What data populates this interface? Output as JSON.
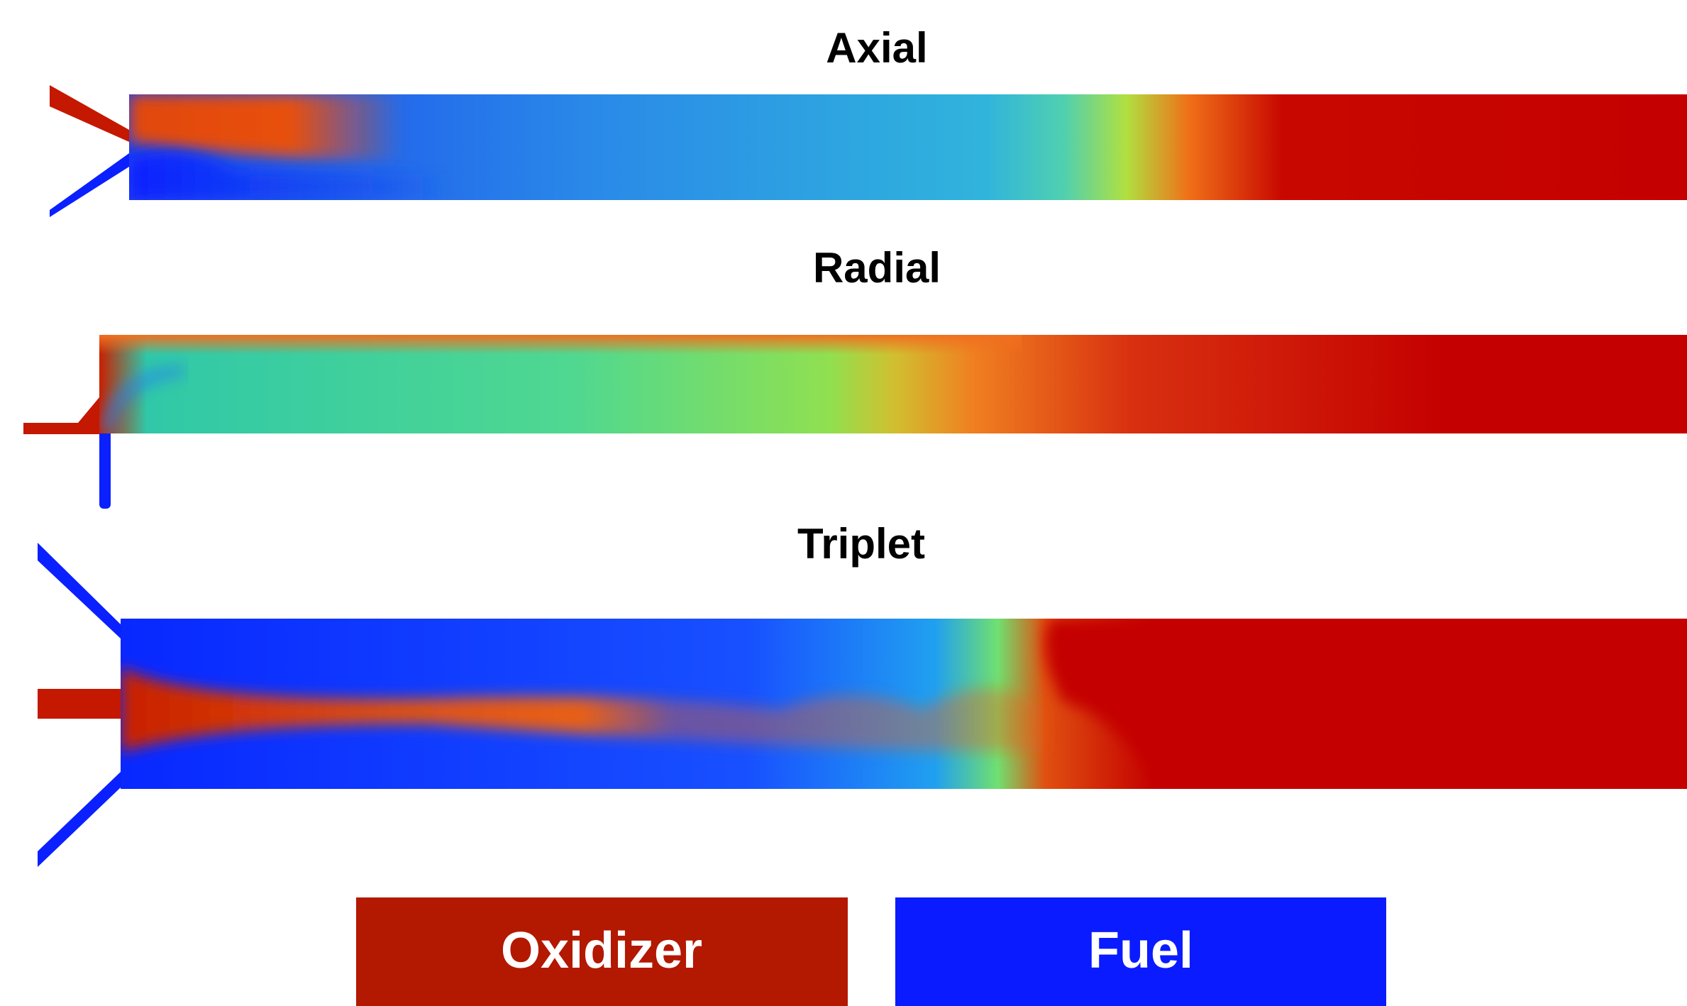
{
  "panels": [
    {
      "title": "Axial"
    },
    {
      "title": "Radial"
    },
    {
      "title": "Triplet"
    }
  ],
  "legend": [
    {
      "label": "Oxidizer"
    },
    {
      "label": "Fuel"
    }
  ]
}
